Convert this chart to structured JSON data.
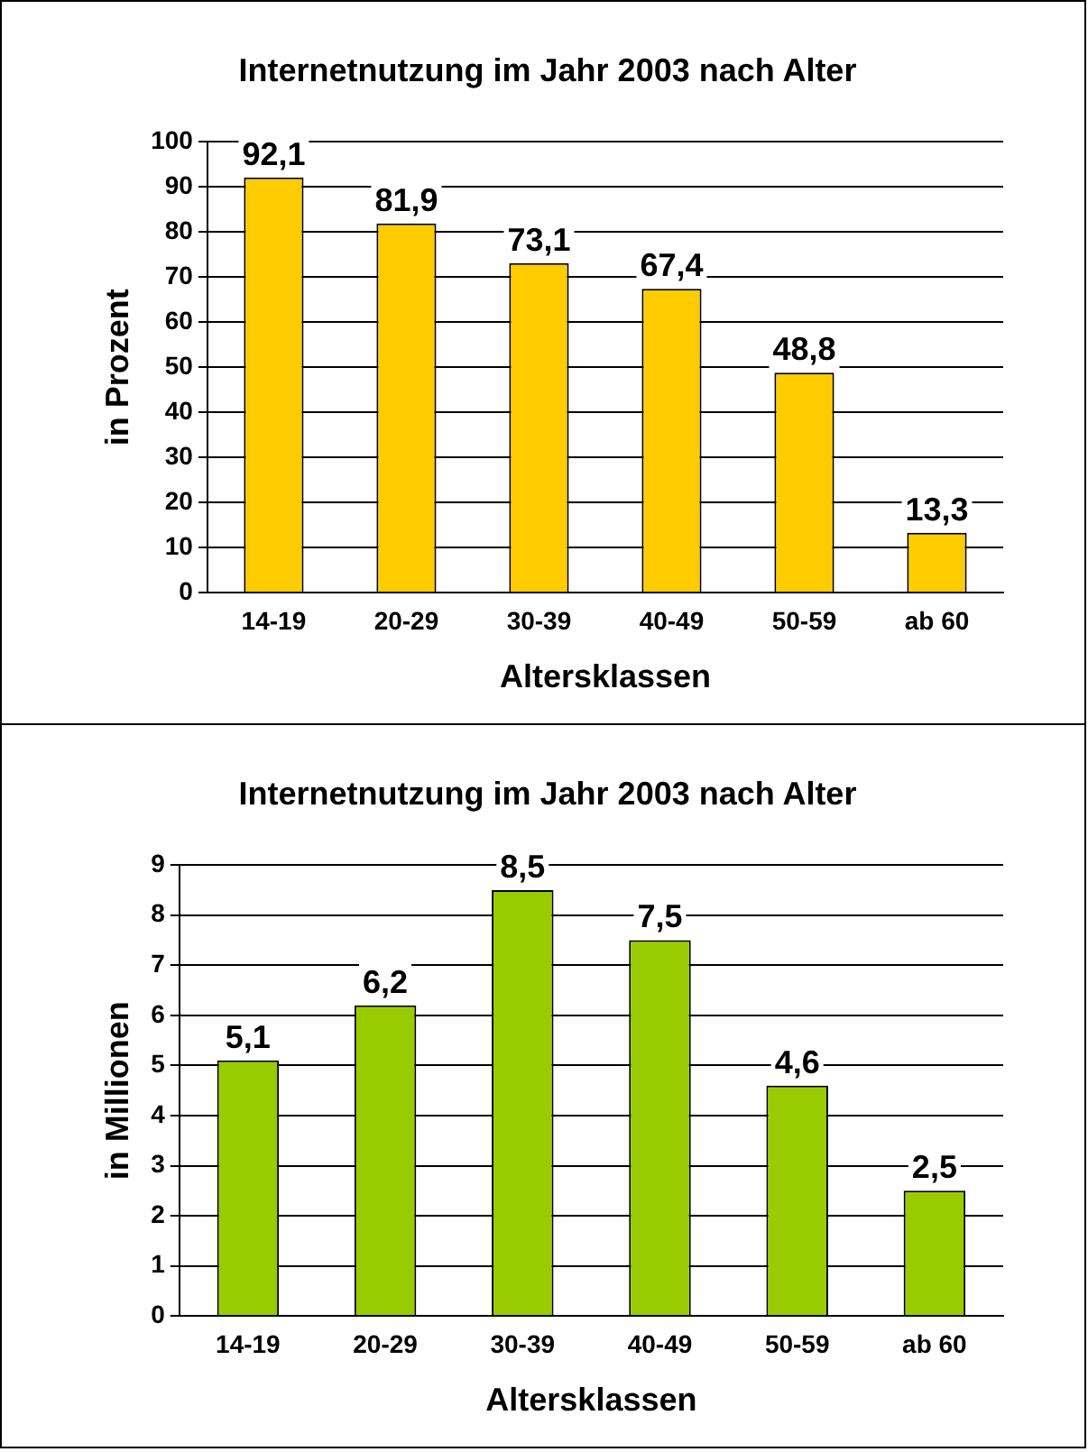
{
  "chart_data": [
    {
      "type": "bar",
      "title": "Internetnutzung im Jahr 2003 nach Alter",
      "xlabel": "Altersklassen",
      "ylabel": "in Prozent",
      "categories": [
        "14-19",
        "20-29",
        "30-39",
        "40-49",
        "50-59",
        "ab 60"
      ],
      "values": [
        92.1,
        81.9,
        73.1,
        67.4,
        48.8,
        13.3
      ],
      "value_labels": [
        "92,1",
        "81,9",
        "73,1",
        "67,4",
        "48,8",
        "13,3"
      ],
      "color": "#ffcc00",
      "ylim": [
        0,
        100
      ],
      "yticks": [
        0,
        10,
        20,
        30,
        40,
        50,
        60,
        70,
        80,
        90,
        100
      ],
      "grid": "y"
    },
    {
      "type": "bar",
      "title": "Internetnutzung im Jahr 2003 nach Alter",
      "xlabel": "Altersklassen",
      "ylabel": "in Millionen",
      "categories": [
        "14-19",
        "20-29",
        "30-39",
        "40-49",
        "50-59",
        "ab 60"
      ],
      "values": [
        5.1,
        6.2,
        8.5,
        7.5,
        4.6,
        2.5
      ],
      "value_labels": [
        "5,1",
        "6,2",
        "8,5",
        "7,5",
        "4,6",
        "2,5"
      ],
      "color": "#99cc00",
      "ylim": [
        0,
        9
      ],
      "yticks": [
        0,
        1,
        2,
        3,
        4,
        5,
        6,
        7,
        8,
        9
      ],
      "grid": "y"
    }
  ]
}
